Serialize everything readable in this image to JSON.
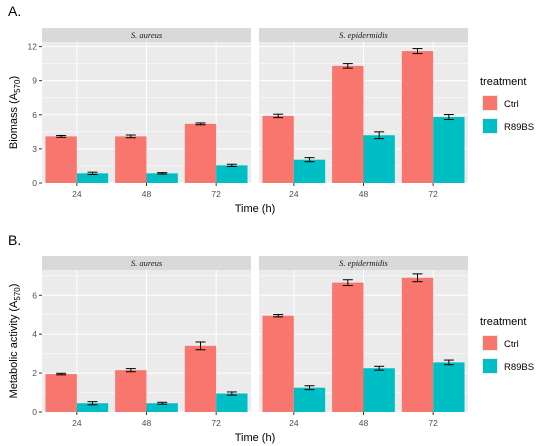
{
  "colors": {
    "Ctrl": "#F8766D",
    "R89BS": "#00BFC4",
    "panel_bg": "#EBEBEB",
    "grid": "#FFFFFF",
    "strip_bg": "#D9D9D9"
  },
  "chart_data": [
    {
      "type": "bar",
      "panel_label": "A.",
      "facets": [
        "S. aureus",
        "S. epidermidis"
      ],
      "categories": [
        "24",
        "48",
        "72"
      ],
      "xlabel": "Time (h)",
      "ylabel": "Biomass (A",
      "ylabel_sub": "570",
      "ylabel_end": ")",
      "ylim": [
        0,
        12.4
      ],
      "yticks": [
        0,
        3,
        6,
        9,
        12
      ],
      "grid": true,
      "legend": {
        "title": "treatment",
        "placement": "right",
        "entries": [
          "Ctrl",
          "R89BS"
        ]
      },
      "series": [
        {
          "name": "Ctrl",
          "values": {
            "S. aureus": [
              4.1,
              4.1,
              5.2
            ],
            "S. epidermidis": [
              5.9,
              10.3,
              11.6
            ]
          },
          "errors": {
            "S. aureus": [
              0.08,
              0.12,
              0.08
            ],
            "S. epidermidis": [
              0.15,
              0.2,
              0.22
            ]
          }
        },
        {
          "name": "R89BS",
          "values": {
            "S. aureus": [
              0.85,
              0.85,
              1.55
            ],
            "S. epidermidis": [
              2.05,
              4.2,
              5.8
            ]
          },
          "errors": {
            "S. aureus": [
              0.1,
              0.06,
              0.1
            ],
            "S. epidermidis": [
              0.18,
              0.3,
              0.22
            ]
          }
        }
      ]
    },
    {
      "type": "bar",
      "panel_label": "B.",
      "facets": [
        "S. aureus",
        "S. epidermidis"
      ],
      "categories": [
        "24",
        "48",
        "72"
      ],
      "xlabel": "Time (h)",
      "ylabel": "Metabolic activity (A",
      "ylabel_sub": "570",
      "ylabel_end": ")",
      "ylim": [
        0,
        7.3
      ],
      "yticks": [
        0,
        2,
        4,
        6
      ],
      "grid": true,
      "legend": {
        "title": "treatment",
        "placement": "right",
        "entries": [
          "Ctrl",
          "R89BS"
        ]
      },
      "series": [
        {
          "name": "Ctrl",
          "values": {
            "S. aureus": [
              1.95,
              2.15,
              3.4
            ],
            "S. epidermidis": [
              4.95,
              6.65,
              6.9
            ]
          },
          "errors": {
            "S. aureus": [
              0.04,
              0.08,
              0.2
            ],
            "S. epidermidis": [
              0.06,
              0.15,
              0.2
            ]
          }
        },
        {
          "name": "R89BS",
          "values": {
            "S. aureus": [
              0.45,
              0.45,
              0.95
            ],
            "S. epidermidis": [
              1.25,
              2.25,
              2.55
            ]
          },
          "errors": {
            "S. aureus": [
              0.08,
              0.05,
              0.08
            ],
            "S. epidermidis": [
              0.1,
              0.1,
              0.12
            ]
          }
        }
      ]
    }
  ]
}
